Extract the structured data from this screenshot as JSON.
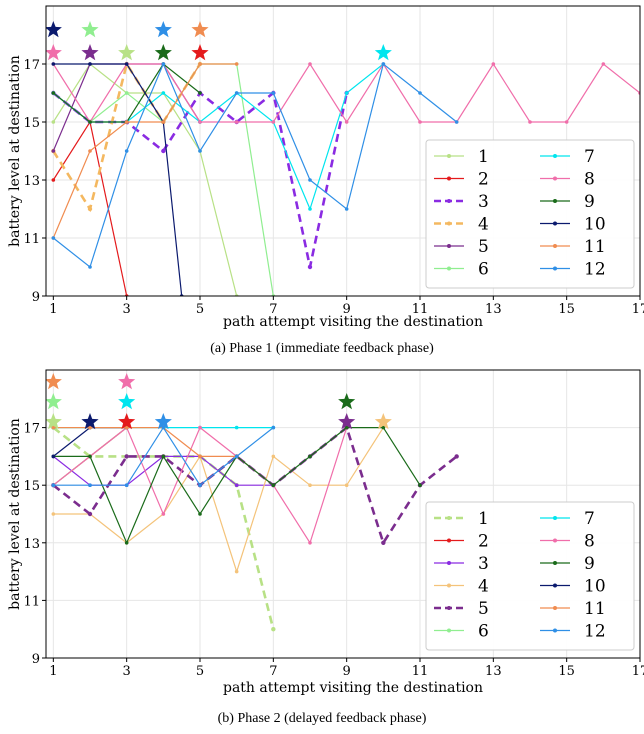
{
  "chart_data": [
    {
      "type": "line",
      "caption": "(a) Phase 1 (immediate feedback phase)",
      "xlabel": "path attempt visiting the destination",
      "ylabel": "battery level at destination",
      "xlim": [
        0.8,
        17
      ],
      "ylim": [
        9,
        19
      ],
      "xticks": [
        1,
        3,
        5,
        7,
        9,
        11,
        13,
        15,
        17
      ],
      "yticks": [
        9,
        11,
        13,
        15,
        17
      ],
      "grid": true,
      "legend_placement": "lower-right",
      "series": [
        {
          "name": "1",
          "color": "#b8e186",
          "dashed": false,
          "x": [
            1,
            2,
            3,
            4,
            5,
            6
          ],
          "y": [
            15,
            17,
            16,
            16,
            14,
            9
          ]
        },
        {
          "name": "2",
          "color": "#e41a1c",
          "dashed": false,
          "x": [
            1,
            2,
            3
          ],
          "y": [
            13,
            15,
            9
          ]
        },
        {
          "name": "3",
          "color": "#8a2be2",
          "dashed": true,
          "x": [
            1,
            2,
            3,
            4,
            5,
            6,
            7,
            8,
            9
          ],
          "y": [
            16,
            15,
            15,
            14,
            16,
            15,
            16,
            10,
            16
          ]
        },
        {
          "name": "4",
          "color": "#f4b860",
          "dashed": true,
          "x": [
            1,
            2,
            3,
            4,
            5
          ],
          "y": [
            14,
            12,
            17,
            15,
            17
          ]
        },
        {
          "name": "5",
          "color": "#7b2d8e",
          "dashed": false,
          "x": [
            1,
            2,
            3,
            4,
            5
          ],
          "y": [
            14,
            17,
            17,
            17,
            15
          ]
        },
        {
          "name": "6",
          "color": "#90ee90",
          "dashed": false,
          "x": [
            1,
            2,
            3,
            4,
            5,
            6,
            7
          ],
          "y": [
            16,
            15,
            16,
            15,
            17,
            17,
            9
          ]
        },
        {
          "name": "7",
          "color": "#00e5ee",
          "dashed": false,
          "x": [
            1,
            2,
            3,
            4,
            5,
            6,
            7,
            8,
            9,
            10
          ],
          "y": [
            16,
            15,
            15,
            16,
            15,
            16,
            15,
            12,
            16,
            17
          ]
        },
        {
          "name": "8",
          "color": "#f06eaa",
          "dashed": false,
          "x": [
            1,
            2,
            3,
            4,
            5,
            6,
            7,
            8,
            9,
            10,
            11,
            12,
            13,
            14,
            15,
            16,
            17
          ],
          "y": [
            17,
            15,
            17,
            17,
            15,
            15,
            15,
            17,
            15,
            17,
            15,
            15,
            17,
            15,
            15,
            17,
            16
          ]
        },
        {
          "name": "9",
          "color": "#1a6b1a",
          "dashed": false,
          "x": [
            1,
            2,
            3,
            4,
            5
          ],
          "y": [
            16,
            15,
            15,
            17,
            16
          ]
        },
        {
          "name": "10",
          "color": "#0b1a6e",
          "dashed": false,
          "x": [
            1,
            2,
            3,
            4,
            4.5
          ],
          "y": [
            17,
            17,
            17,
            15,
            9
          ]
        },
        {
          "name": "11",
          "color": "#f08c50",
          "dashed": false,
          "x": [
            1,
            2,
            3,
            4,
            5,
            6
          ],
          "y": [
            11,
            14,
            15,
            15,
            17,
            17
          ]
        },
        {
          "name": "12",
          "color": "#2f8fe6",
          "dashed": false,
          "x": [
            1,
            2,
            3,
            4,
            5,
            6,
            7,
            8,
            9,
            10,
            11,
            12
          ],
          "y": [
            11,
            10,
            14,
            17,
            14,
            16,
            16,
            13,
            12,
            17,
            16,
            15
          ]
        }
      ],
      "stars": [
        {
          "x": 1,
          "level": 2,
          "color": "#0b1a6e"
        },
        {
          "x": 1,
          "level": 1,
          "color": "#f06eaa"
        },
        {
          "x": 2,
          "level": 2,
          "color": "#90ee90"
        },
        {
          "x": 2,
          "level": 1,
          "color": "#7b2d8e"
        },
        {
          "x": 3,
          "level": 1,
          "color": "#b8e186"
        },
        {
          "x": 4,
          "level": 2,
          "color": "#2f8fe6"
        },
        {
          "x": 4,
          "level": 1,
          "color": "#1a6b1a"
        },
        {
          "x": 5,
          "level": 2,
          "color": "#f08c50"
        },
        {
          "x": 5,
          "level": 1,
          "color": "#e41a1c"
        },
        {
          "x": 10,
          "level": 1,
          "color": "#00e5ee"
        }
      ]
    },
    {
      "type": "line",
      "caption": "(b) Phase 2 (delayed feedback phase)",
      "xlabel": "path attempt visiting the destination",
      "ylabel": "battery level at destination",
      "xlim": [
        0.8,
        17
      ],
      "ylim": [
        9,
        19
      ],
      "xticks": [
        1,
        3,
        5,
        7,
        9,
        11,
        13,
        15,
        17
      ],
      "yticks": [
        9,
        11,
        13,
        15,
        17
      ],
      "grid": true,
      "legend_placement": "lower-right",
      "series": [
        {
          "name": "1",
          "color": "#b8e186",
          "dashed": true,
          "x": [
            1,
            2,
            3,
            4,
            5,
            6,
            7
          ],
          "y": [
            17,
            16,
            16,
            16,
            16,
            15,
            10
          ]
        },
        {
          "name": "2",
          "color": "#e41a1c",
          "dashed": false,
          "x": [
            1,
            2,
            3
          ],
          "y": [
            15,
            16,
            17
          ]
        },
        {
          "name": "3",
          "color": "#8a2be2",
          "dashed": false,
          "x": [
            1,
            2,
            3,
            4,
            5,
            6,
            7
          ],
          "y": [
            16,
            15,
            15,
            16,
            16,
            15,
            15
          ]
        },
        {
          "name": "4",
          "color": "#f4c37a",
          "dashed": false,
          "x": [
            1,
            2,
            3,
            4,
            5,
            6,
            7,
            8,
            9,
            10
          ],
          "y": [
            14,
            14,
            13,
            14,
            16,
            12,
            16,
            15,
            15,
            17
          ]
        },
        {
          "name": "5",
          "color": "#7b2d8e",
          "dashed": true,
          "x": [
            1,
            2,
            3,
            4,
            5,
            6,
            7,
            8,
            9,
            10,
            11,
            12
          ],
          "y": [
            15,
            14,
            16,
            16,
            15,
            16,
            15,
            16,
            17,
            13,
            15,
            16
          ]
        },
        {
          "name": "6",
          "color": "#90ee90",
          "dashed": false,
          "x": [
            1,
            2,
            3
          ],
          "y": [
            15,
            16,
            17
          ]
        },
        {
          "name": "7",
          "color": "#00e5ee",
          "dashed": false,
          "x": [
            1,
            2,
            3,
            4,
            5,
            6,
            7
          ],
          "y": [
            17,
            17,
            17,
            17,
            17,
            17,
            17
          ]
        },
        {
          "name": "8",
          "color": "#f06eaa",
          "dashed": false,
          "x": [
            1,
            2,
            3,
            4,
            5,
            6,
            7,
            8,
            9
          ],
          "y": [
            15,
            16,
            17,
            14,
            17,
            16,
            15,
            13,
            17
          ]
        },
        {
          "name": "9",
          "color": "#1a6b1a",
          "dashed": false,
          "x": [
            1,
            2,
            3,
            4,
            5,
            6,
            7,
            8,
            9,
            10,
            11
          ],
          "y": [
            16,
            16,
            13,
            16,
            14,
            16,
            15,
            16,
            17,
            17,
            15
          ]
        },
        {
          "name": "10",
          "color": "#0b1a6e",
          "dashed": false,
          "x": [
            1,
            2,
            3
          ],
          "y": [
            16,
            17,
            17
          ]
        },
        {
          "name": "11",
          "color": "#f08c50",
          "dashed": false,
          "x": [
            1,
            2,
            3,
            4,
            5,
            6
          ],
          "y": [
            17,
            17,
            17,
            17,
            16,
            16
          ]
        },
        {
          "name": "12",
          "color": "#2f8fe6",
          "dashed": false,
          "x": [
            1,
            2,
            3,
            4,
            5,
            6,
            7
          ],
          "y": [
            15,
            15,
            15,
            17,
            15,
            16,
            17
          ]
        }
      ],
      "stars": [
        {
          "x": 1,
          "level": 3,
          "color": "#f08c50"
        },
        {
          "x": 1,
          "level": 2,
          "color": "#90ee90"
        },
        {
          "x": 1,
          "level": 1,
          "color": "#b8e186"
        },
        {
          "x": 2,
          "level": 1,
          "color": "#0b1a6e"
        },
        {
          "x": 3,
          "level": 3,
          "color": "#f06eaa"
        },
        {
          "x": 3,
          "level": 2,
          "color": "#00e5ee"
        },
        {
          "x": 3,
          "level": 1,
          "color": "#e41a1c"
        },
        {
          "x": 4,
          "level": 1,
          "color": "#2f8fe6"
        },
        {
          "x": 9,
          "level": 2,
          "color": "#1a6b1a"
        },
        {
          "x": 9,
          "level": 1,
          "color": "#7b2d8e"
        },
        {
          "x": 10,
          "level": 1,
          "color": "#f4c37a"
        }
      ]
    }
  ]
}
